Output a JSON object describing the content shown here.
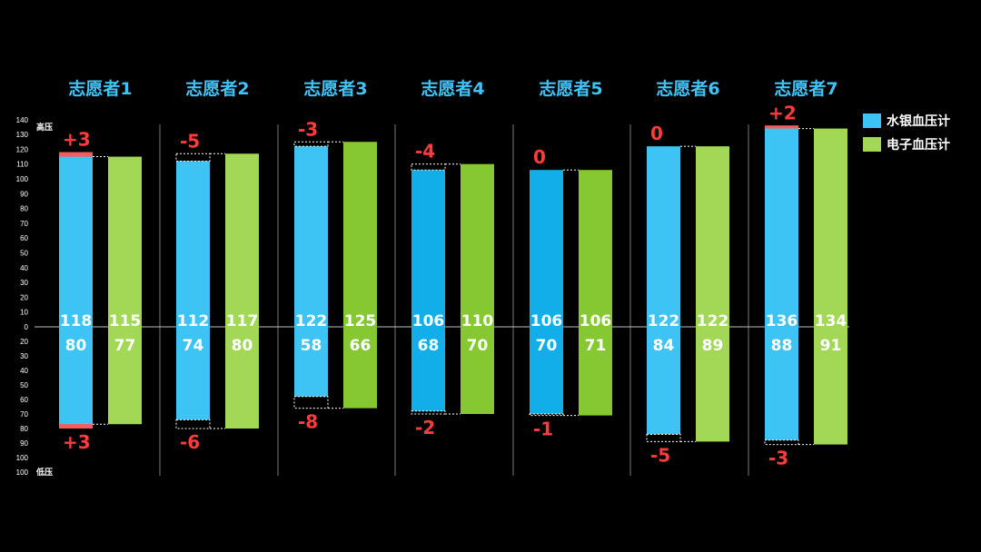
{
  "chart_data": {
    "type": "bar",
    "title": "",
    "axis": {
      "upper_label": "高压",
      "lower_label": "低压",
      "upper_range": [
        0,
        140
      ],
      "lower_range": [
        0,
        100
      ],
      "upper_ticks": [
        140,
        130,
        120,
        110,
        100,
        90,
        80,
        70,
        60,
        50,
        40,
        30,
        20,
        10,
        0
      ],
      "lower_ticks": [
        20,
        30,
        40,
        50,
        60,
        70,
        80,
        90,
        100
      ]
    },
    "categories": [
      "志愿者1",
      "志愿者2",
      "志愿者3",
      "志愿者4",
      "志愿者5",
      "志愿者6",
      "志愿者7"
    ],
    "series": [
      {
        "name": "水银血压计",
        "color": "#3ec4f4",
        "systolic": [
          118,
          112,
          122,
          106,
          106,
          122,
          136
        ],
        "diastolic": [
          80,
          74,
          58,
          68,
          70,
          84,
          88
        ]
      },
      {
        "name": "电子血压计",
        "color": "#a3d856",
        "systolic": [
          115,
          117,
          125,
          110,
          106,
          122,
          134
        ],
        "diastolic": [
          77,
          80,
          66,
          70,
          71,
          89,
          91
        ]
      }
    ],
    "systolic_diff": [
      "+3",
      "-5",
      "-3",
      "-4",
      "0",
      "0",
      "+2"
    ],
    "diastolic_diff": [
      "+3",
      "-6",
      "-8",
      "-2",
      "-1",
      "-5",
      "-3"
    ]
  },
  "colors": {
    "mercury": "#3ec4f4",
    "electronic": "#a3d856",
    "diff": "#ff3b3b",
    "title": "#3fc3f5"
  }
}
